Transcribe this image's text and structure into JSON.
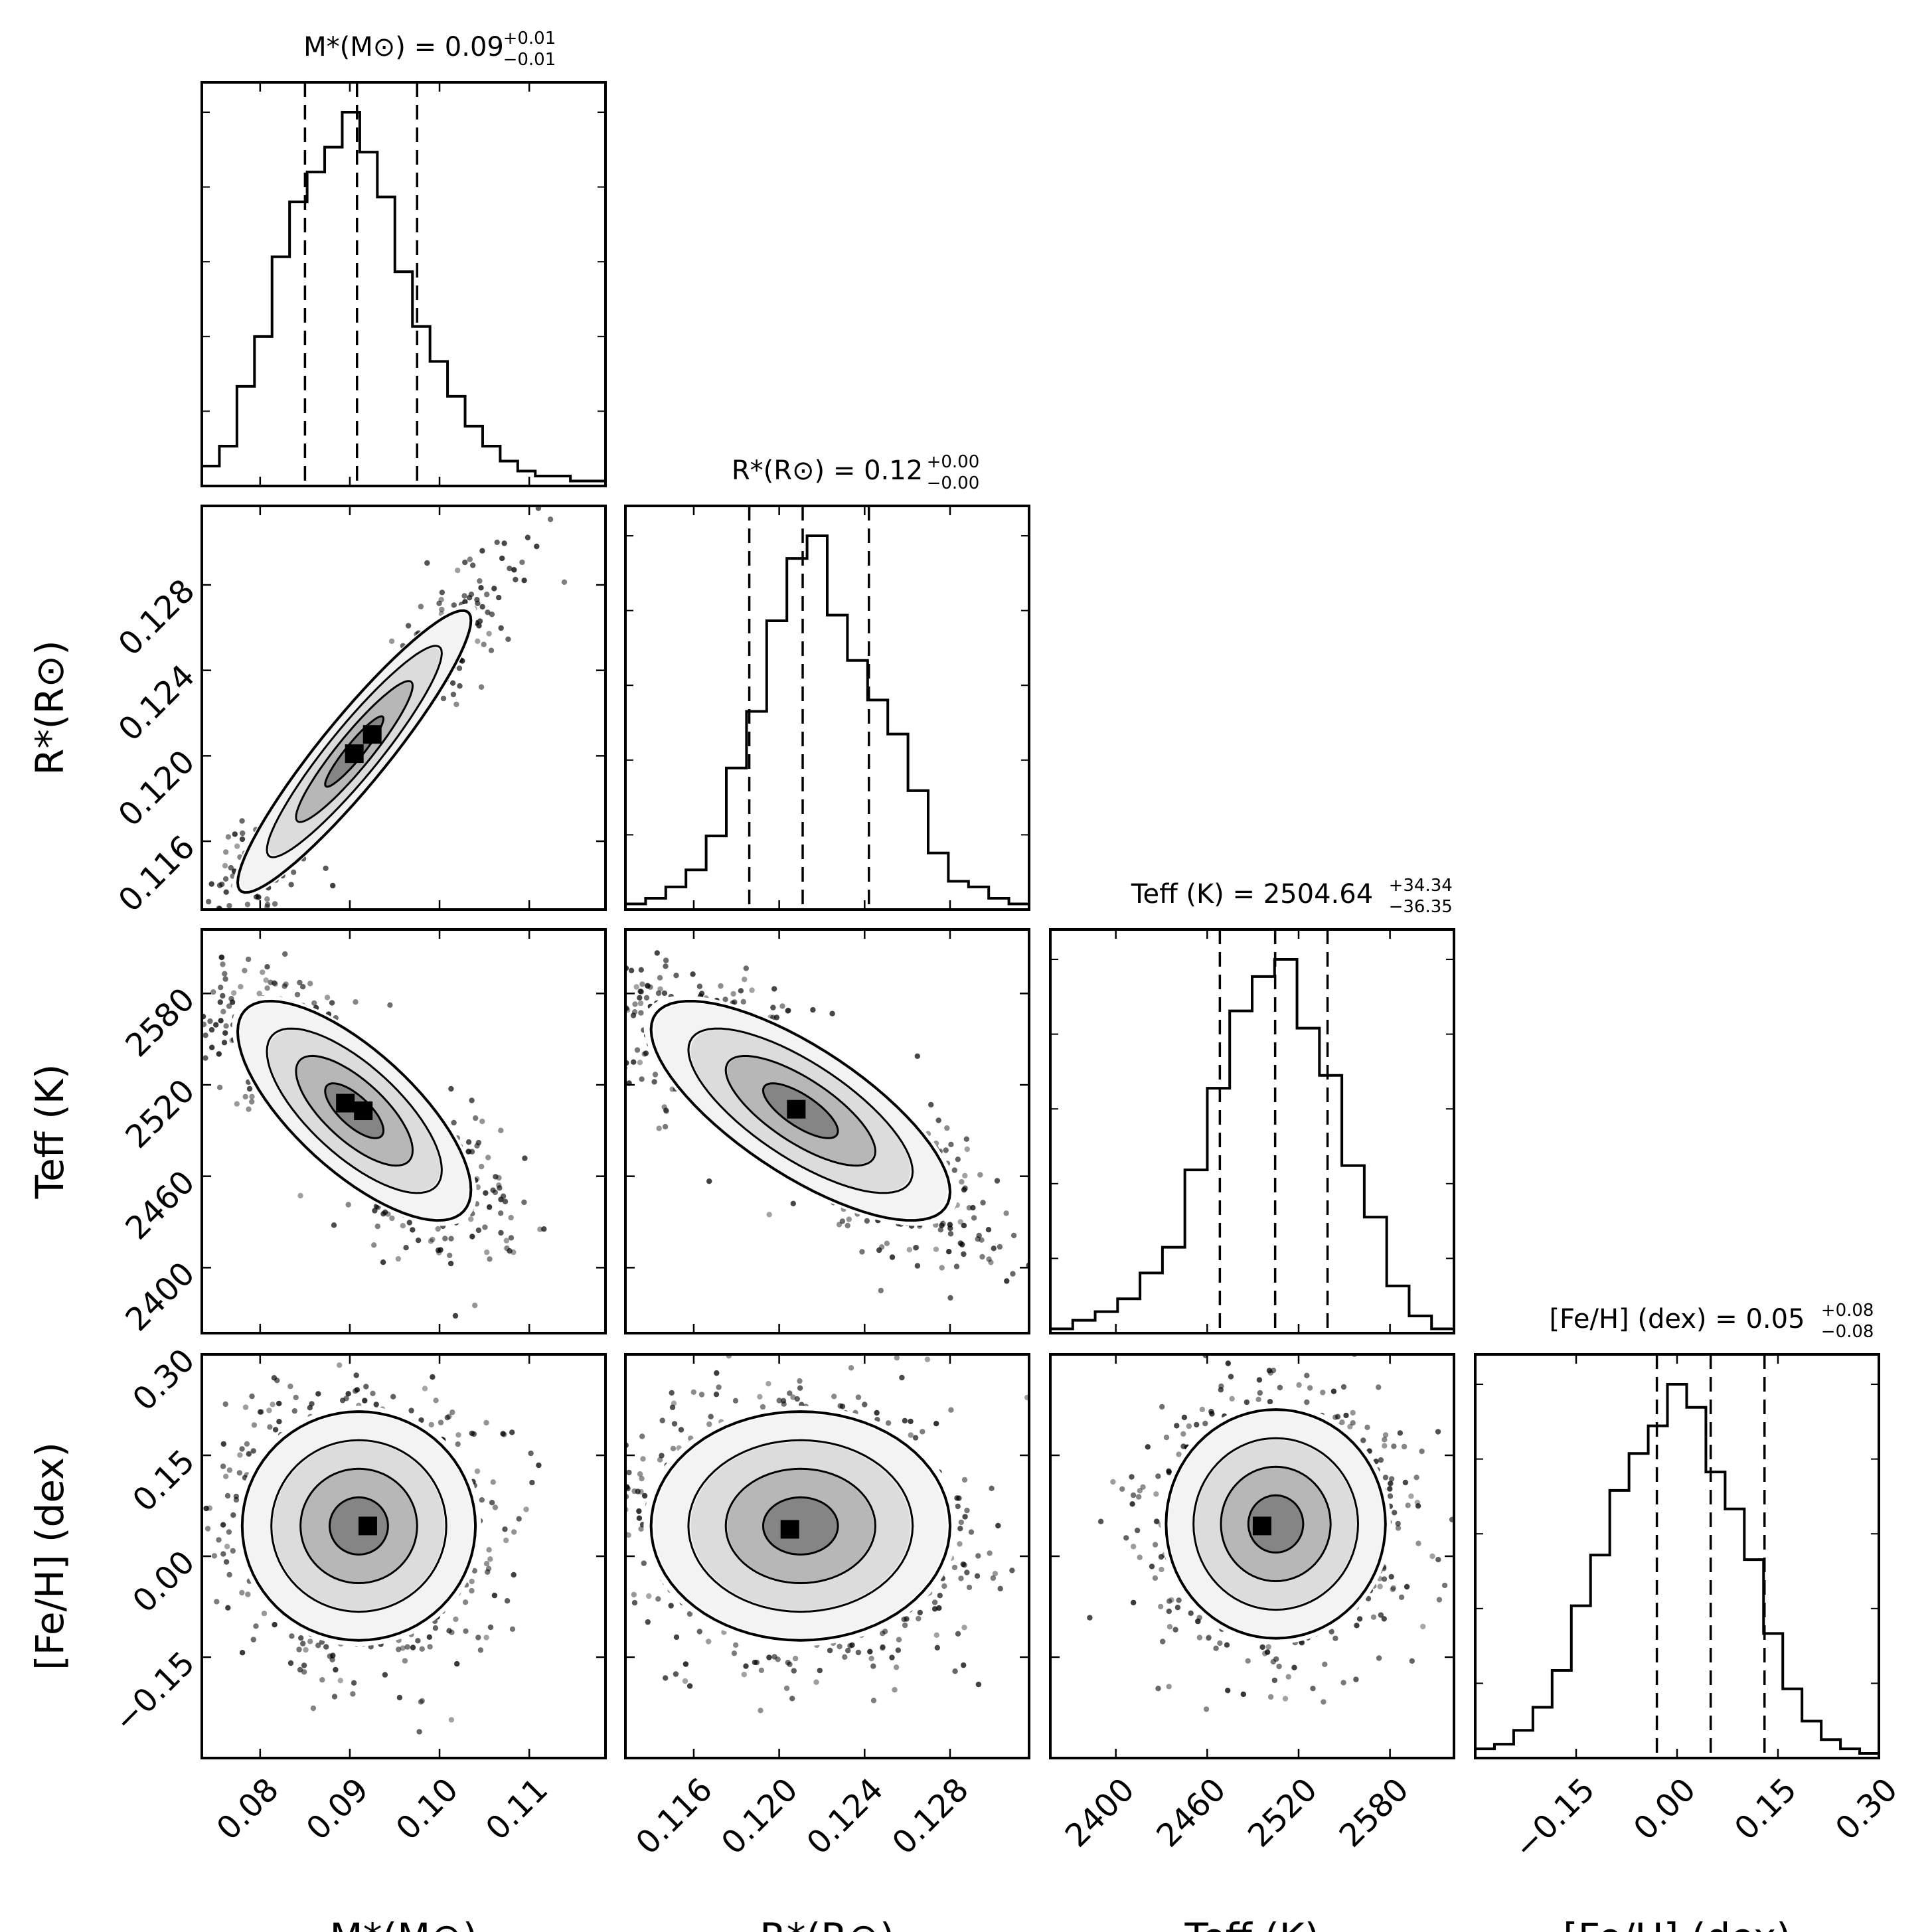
{
  "chart_data": {
    "type": "corner",
    "parameters": [
      {
        "key": "mass",
        "axis_label": "M*(M⊙)",
        "title_text": "M*(M⊙) = 0.09",
        "title_sup": "+0.01",
        "title_sub": "−0.01",
        "range": [
          0.0735,
          0.1185
        ],
        "ticks": [
          0.08,
          0.09,
          0.1,
          0.11
        ],
        "tick_labels": [
          "0.08",
          "0.09",
          "0.10",
          "0.11"
        ],
        "quantiles": [
          0.085,
          0.0908,
          0.0975
        ],
        "hist_edges": [
          0.0735,
          0.1185
        ],
        "hist_counts": [
          4,
          8,
          20,
          30,
          46,
          57,
          63,
          68,
          75,
          67,
          58,
          43,
          32,
          25,
          18,
          12,
          8,
          5,
          3,
          2,
          2,
          1,
          1
        ]
      },
      {
        "key": "radius",
        "axis_label": "R*(R⊙)",
        "title_text": "R*(R⊙) = 0.12",
        "title_sup": "+0.00",
        "title_sub": "−0.00",
        "range": [
          0.1128,
          0.1317
        ],
        "ticks": [
          0.116,
          0.12,
          0.124,
          0.128
        ],
        "tick_labels": [
          "0.116",
          "0.120",
          "0.124",
          "0.128"
        ],
        "quantiles": [
          0.1186,
          0.1211,
          0.1242
        ],
        "hist_edges": [
          0.1128,
          0.1317
        ],
        "hist_counts": [
          1,
          2,
          4,
          7,
          13,
          25,
          35,
          51,
          62,
          66,
          52,
          44,
          37,
          31,
          21,
          10,
          5,
          4,
          2,
          1
        ]
      },
      {
        "key": "teff",
        "axis_label": "Teff (K)",
        "title_text": "Teff (K) = 2504.64",
        "title_sup": "+34.34",
        "title_sub": "−36.35",
        "range": [
          2357,
          2622
        ],
        "ticks": [
          2400,
          2460,
          2520,
          2580
        ],
        "tick_labels": [
          "2400",
          "2460",
          "2520",
          "2580"
        ],
        "quantiles": [
          2468.3,
          2504.6,
          2539.0
        ],
        "hist_edges": [
          2357,
          2622
        ],
        "hist_counts": [
          1,
          3,
          5,
          8,
          14,
          20,
          38,
          57,
          75,
          83,
          87,
          71,
          60,
          39,
          27,
          11,
          4,
          1
        ]
      },
      {
        "key": "feh",
        "axis_label": "[Fe/H] (dex)",
        "title_text": "[Fe/H] (dex) = 0.05",
        "title_sup": "+0.08",
        "title_sub": "−0.08",
        "range": [
          -0.3,
          0.3
        ],
        "ticks": [
          -0.15,
          0.0,
          0.15,
          0.3
        ],
        "tick_labels": [
          "−0.15",
          "0.00",
          "0.15",
          "0.30"
        ],
        "quantiles": [
          -0.03,
          0.05,
          0.13
        ],
        "hist_edges": [
          -0.3,
          0.3
        ],
        "hist_counts": [
          2,
          3,
          6,
          11,
          19,
          33,
          44,
          58,
          66,
          72,
          81,
          76,
          62,
          54,
          43,
          27,
          15,
          8,
          4,
          2,
          1
        ]
      }
    ],
    "pairs": [
      {
        "x": "mass",
        "y": "radius",
        "center": [
          0.0905,
          0.1202
        ],
        "sigma": [
          0.0065,
          0.0033
        ],
        "rho": 0.93,
        "peak_cells": [
          [
            0.0905,
            0.1201
          ],
          [
            0.0925,
            0.121
          ]
        ]
      },
      {
        "x": "mass",
        "y": "teff",
        "center": [
          0.0905,
          2503
        ],
        "sigma": [
          0.0065,
          36
        ],
        "rho": -0.72,
        "peak_cells": [
          [
            0.0895,
            2508
          ],
          [
            0.0915,
            2503
          ]
        ]
      },
      {
        "x": "radius",
        "y": "teff",
        "center": [
          0.121,
          2503
        ],
        "sigma": [
          0.0035,
          36
        ],
        "rho": -0.74,
        "peak_cells": [
          [
            0.1208,
            2504
          ]
        ]
      },
      {
        "x": "mass",
        "y": "feh",
        "center": [
          0.091,
          0.045
        ],
        "sigma": [
          0.0065,
          0.085
        ],
        "rho": 0.0,
        "peak_cells": [
          [
            0.092,
            0.045
          ]
        ]
      },
      {
        "x": "radius",
        "y": "feh",
        "center": [
          0.121,
          0.045
        ],
        "sigma": [
          0.0035,
          0.085
        ],
        "rho": 0.0,
        "peak_cells": [
          [
            0.1205,
            0.04
          ]
        ]
      },
      {
        "x": "teff",
        "y": "feh",
        "center": [
          2505,
          0.048
        ],
        "sigma": [
          36,
          0.085
        ],
        "rho": 0.0,
        "peak_cells": [
          [
            2496,
            0.045
          ]
        ]
      }
    ],
    "contour_levels_sigma": [
      0.5,
      1.0,
      1.5,
      2.0
    ],
    "quantile_fractions": [
      0.16,
      0.5,
      0.84
    ]
  }
}
